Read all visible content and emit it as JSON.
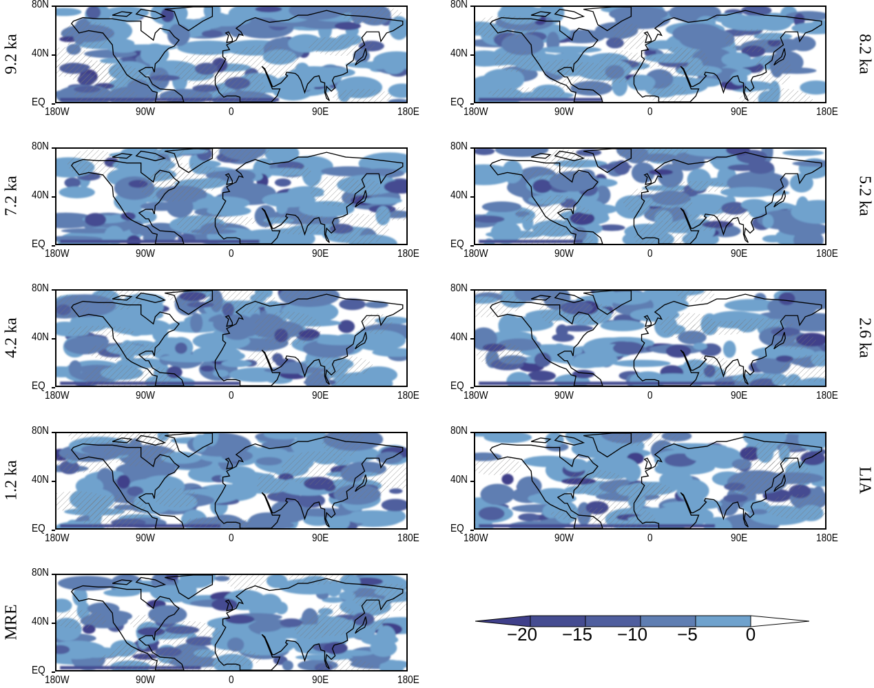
{
  "panels": [
    {
      "label": "9.2 ka",
      "side": "left"
    },
    {
      "label": "8.2 ka",
      "side": "right"
    },
    {
      "label": "7.2 ka",
      "side": "left"
    },
    {
      "label": "5.2 ka",
      "side": "right"
    },
    {
      "label": "4.2 ka",
      "side": "left"
    },
    {
      "label": "2.6 ka",
      "side": "right"
    },
    {
      "label": "1.2 ka",
      "side": "left"
    },
    {
      "label": "LIA",
      "side": "right"
    },
    {
      "label": "MRE",
      "side": "left"
    }
  ],
  "lat_ticks": [
    "EQ",
    "40N",
    "80N"
  ],
  "lon_ticks": [
    "180W",
    "90W",
    "0",
    "90E",
    "180E"
  ],
  "colorbar": {
    "labels": [
      "−20",
      "−15",
      "−10",
      "−5",
      "0"
    ],
    "levels": [
      -20,
      -15,
      -10,
      -5,
      0
    ],
    "colors": [
      "#3f3f8a",
      "#454c91",
      "#4f5e9e",
      "#5f7eb2",
      "#6fa2cd",
      "#ffffff"
    ],
    "extend": "both"
  },
  "hatching": "significance stippling (diagonal hatch)",
  "coastline_color": "#000000"
}
